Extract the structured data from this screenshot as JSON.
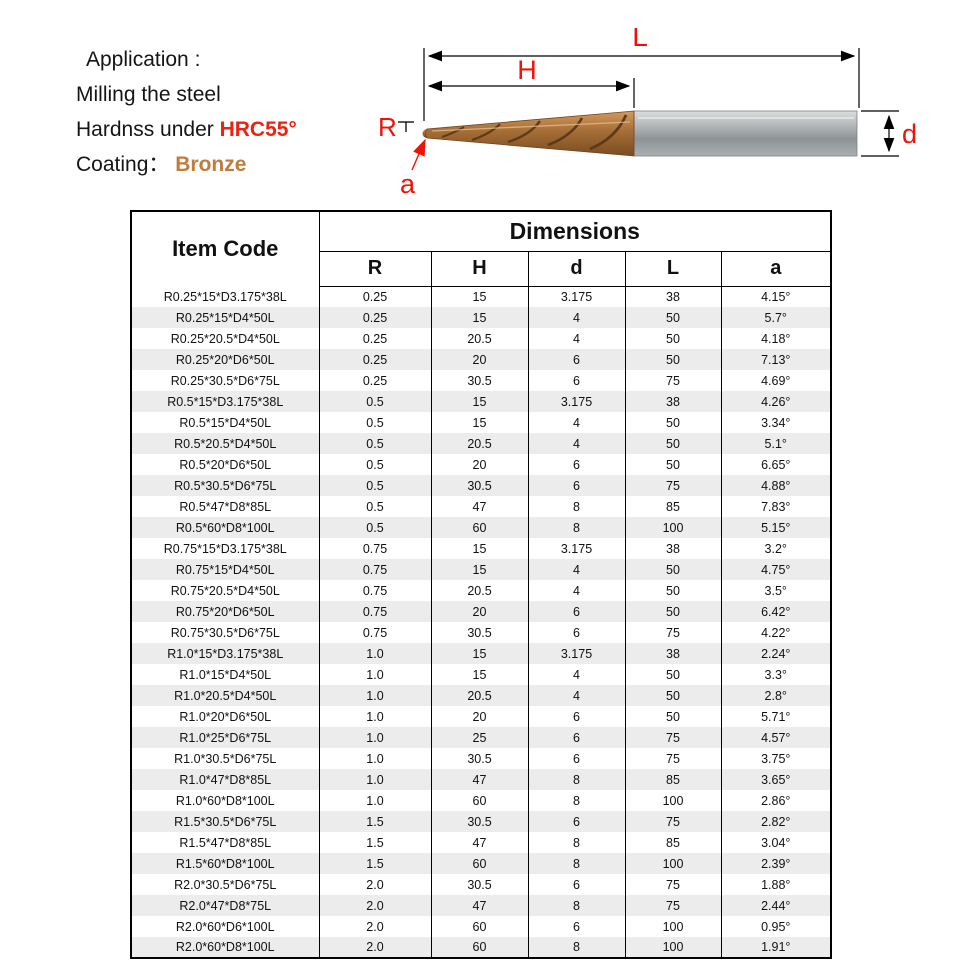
{
  "info": {
    "application_label": "Application :",
    "line1": "Milling the steel",
    "line2_prefix": "Hardnss under ",
    "line2_highlight": "HRC55°",
    "line3_prefix": "Coating：",
    "line3_highlight": "Bronze"
  },
  "diagram": {
    "labels": {
      "L": "L",
      "H": "H",
      "R": "R",
      "a": "a",
      "d": "d"
    },
    "colors": {
      "dimension_line": "#000000",
      "label": "#ee1309",
      "flute": "#a06a35",
      "shank": "#a8adaf"
    }
  },
  "table": {
    "item_code_header": "Item Code",
    "dimensions_header": "Dimensions",
    "columns": [
      "R",
      "H",
      "d",
      "L",
      "a"
    ],
    "rows": [
      [
        "R0.25*15*D3.175*38L",
        "0.25",
        "15",
        "3.175",
        "38",
        "4.15°"
      ],
      [
        "R0.25*15*D4*50L",
        "0.25",
        "15",
        "4",
        "50",
        "5.7°"
      ],
      [
        "R0.25*20.5*D4*50L",
        "0.25",
        "20.5",
        "4",
        "50",
        "4.18°"
      ],
      [
        "R0.25*20*D6*50L",
        "0.25",
        "20",
        "6",
        "50",
        "7.13°"
      ],
      [
        "R0.25*30.5*D6*75L",
        "0.25",
        "30.5",
        "6",
        "75",
        "4.69°"
      ],
      [
        "R0.5*15*D3.175*38L",
        "0.5",
        "15",
        "3.175",
        "38",
        "4.26°"
      ],
      [
        "R0.5*15*D4*50L",
        "0.5",
        "15",
        "4",
        "50",
        "3.34°"
      ],
      [
        "R0.5*20.5*D4*50L",
        "0.5",
        "20.5",
        "4",
        "50",
        "5.1°"
      ],
      [
        "R0.5*20*D6*50L",
        "0.5",
        "20",
        "6",
        "50",
        "6.65°"
      ],
      [
        "R0.5*30.5*D6*75L",
        "0.5",
        "30.5",
        "6",
        "75",
        "4.88°"
      ],
      [
        "R0.5*47*D8*85L",
        "0.5",
        "47",
        "8",
        "85",
        "7.83°"
      ],
      [
        "R0.5*60*D8*100L",
        "0.5",
        "60",
        "8",
        "100",
        "5.15°"
      ],
      [
        "R0.75*15*D3.175*38L",
        "0.75",
        "15",
        "3.175",
        "38",
        "3.2°"
      ],
      [
        "R0.75*15*D4*50L",
        "0.75",
        "15",
        "4",
        "50",
        "4.75°"
      ],
      [
        "R0.75*20.5*D4*50L",
        "0.75",
        "20.5",
        "4",
        "50",
        "3.5°"
      ],
      [
        "R0.75*20*D6*50L",
        "0.75",
        "20",
        "6",
        "50",
        "6.42°"
      ],
      [
        "R0.75*30.5*D6*75L",
        "0.75",
        "30.5",
        "6",
        "75",
        "4.22°"
      ],
      [
        "R1.0*15*D3.175*38L",
        "1.0",
        "15",
        "3.175",
        "38",
        "2.24°"
      ],
      [
        "R1.0*15*D4*50L",
        "1.0",
        "15",
        "4",
        "50",
        "3.3°"
      ],
      [
        "R1.0*20.5*D4*50L",
        "1.0",
        "20.5",
        "4",
        "50",
        "2.8°"
      ],
      [
        "R1.0*20*D6*50L",
        "1.0",
        "20",
        "6",
        "50",
        "5.71°"
      ],
      [
        "R1.0*25*D6*75L",
        "1.0",
        "25",
        "6",
        "75",
        "4.57°"
      ],
      [
        "R1.0*30.5*D6*75L",
        "1.0",
        "30.5",
        "6",
        "75",
        "3.75°"
      ],
      [
        "R1.0*47*D8*85L",
        "1.0",
        "47",
        "8",
        "85",
        "3.65°"
      ],
      [
        "R1.0*60*D8*100L",
        "1.0",
        "60",
        "8",
        "100",
        "2.86°"
      ],
      [
        "R1.5*30.5*D6*75L",
        "1.5",
        "30.5",
        "6",
        "75",
        "2.82°"
      ],
      [
        "R1.5*47*D8*85L",
        "1.5",
        "47",
        "8",
        "85",
        "3.04°"
      ],
      [
        "R1.5*60*D8*100L",
        "1.5",
        "60",
        "8",
        "100",
        "2.39°"
      ],
      [
        "R2.0*30.5*D6*75L",
        "2.0",
        "30.5",
        "6",
        "75",
        "1.88°"
      ],
      [
        "R2.0*47*D8*75L",
        "2.0",
        "47",
        "8",
        "75",
        "2.44°"
      ],
      [
        "R2.0*60*D6*100L",
        "2.0",
        "60",
        "6",
        "100",
        "0.95°"
      ],
      [
        "R2.0*60*D8*100L",
        "2.0",
        "60",
        "8",
        "100",
        "1.91°"
      ]
    ]
  }
}
